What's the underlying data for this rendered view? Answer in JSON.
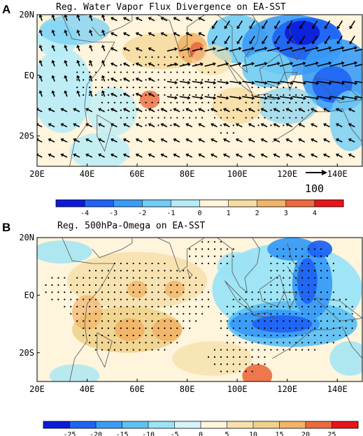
{
  "chart_data": [
    {
      "type": "heatmap",
      "panel_label": "A",
      "title": "Reg. Water Vapor Flux Divergence on  EA-SST",
      "x_ticks": [
        "20E",
        "40E",
        "60E",
        "80E",
        "100E",
        "120E",
        "140E"
      ],
      "y_ticks": [
        "20N",
        "EQ",
        "20S"
      ],
      "xlim": [
        20,
        150
      ],
      "ylim": [
        -30,
        20
      ],
      "colorbar": {
        "labels": [
          "-4",
          "-3",
          "-2",
          "-1",
          "0",
          "1",
          "2",
          "3",
          "4"
        ],
        "colors": [
          "#0a1cd8",
          "#1f64f5",
          "#3a9cf7",
          "#70cdf5",
          "#b7ecf7",
          "#fff4dc",
          "#f6dca0",
          "#f1b468",
          "#ec6a3e",
          "#e8141a"
        ]
      },
      "reference_vector": "100",
      "stippling": "significant",
      "vectors": "water vapor flux"
    },
    {
      "type": "heatmap",
      "panel_label": "B",
      "title": "Reg. 500hPa-Omega on EA-SST",
      "x_ticks": [
        "20E",
        "40E",
        "60E",
        "80E",
        "100E",
        "120E",
        "140E"
      ],
      "y_ticks": [
        "20N",
        "EQ",
        "20S"
      ],
      "xlim": [
        20,
        150
      ],
      "ylim": [
        -30,
        20
      ],
      "colorbar": {
        "labels": [
          "-25",
          "-20",
          "-15",
          "-10",
          "-5",
          "0",
          "5",
          "10",
          "15",
          "20",
          "25"
        ],
        "colors": [
          "#0a1cd8",
          "#1f64f5",
          "#3a9cf7",
          "#5fc1f2",
          "#9be4f5",
          "#d6f4f7",
          "#fff4dc",
          "#f6e1ad",
          "#f0d28a",
          "#f1b468",
          "#ec6a3e",
          "#e8141a"
        ]
      },
      "stippling": "significant"
    }
  ]
}
